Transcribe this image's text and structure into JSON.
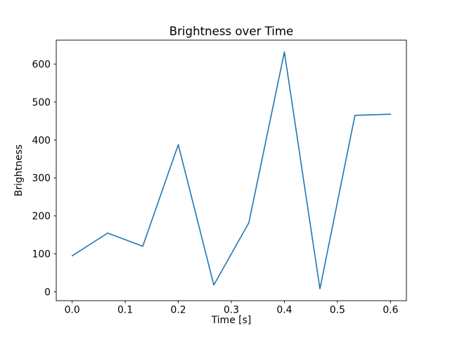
{
  "figure": {
    "title": "Brightness over Time",
    "xlabel": "Time [s]",
    "ylabel": "Brightness"
  },
  "chart_data": {
    "type": "line",
    "title": "Brightness over Time",
    "xlabel": "Time [s]",
    "ylabel": "Brightness",
    "x": [
      0.0,
      0.067,
      0.133,
      0.2,
      0.267,
      0.333,
      0.4,
      0.467,
      0.533,
      0.6
    ],
    "y": [
      95,
      155,
      120,
      388,
      18,
      182,
      632,
      8,
      465,
      468
    ],
    "x_ticks": [
      0.0,
      0.1,
      0.2,
      0.3,
      0.4,
      0.5,
      0.6
    ],
    "x_tick_labels": [
      "0.0",
      "0.1",
      "0.2",
      "0.3",
      "0.4",
      "0.5",
      "0.6"
    ],
    "y_ticks": [
      0,
      100,
      200,
      300,
      400,
      500,
      600
    ],
    "y_tick_labels": [
      "0",
      "100",
      "200",
      "300",
      "400",
      "500",
      "600"
    ],
    "xlim": [
      -0.03,
      0.63
    ],
    "ylim": [
      -23.2,
      663.2
    ],
    "line_color": "#1f77b4",
    "axis_color": "#000000",
    "background": "#ffffff",
    "grid": false,
    "legend": null
  }
}
